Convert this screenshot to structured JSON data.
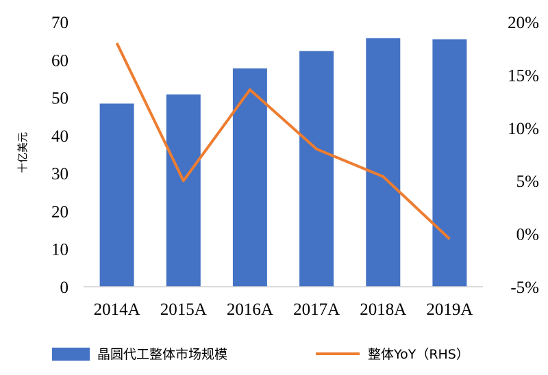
{
  "chart_data": {
    "type": "bar+line",
    "categories": [
      "2014A",
      "2015A",
      "2016A",
      "2017A",
      "2018A",
      "2019A"
    ],
    "series": [
      {
        "name": "晶圆代工整体市场规模",
        "type": "bar",
        "axis": "left",
        "color": "#4472C4",
        "values": [
          48.4,
          50.8,
          57.7,
          62.3,
          65.7,
          65.4
        ]
      },
      {
        "name": "整体YoY（RHS）",
        "type": "line",
        "axis": "right",
        "color": "#ED7D31",
        "values": [
          18.0,
          5.0,
          13.6,
          8.0,
          5.4,
          -0.5
        ]
      }
    ],
    "ylabel": "十亿美元",
    "ylim": [
      0,
      70
    ],
    "yticks": [
      "0",
      "10",
      "20",
      "30",
      "40",
      "50",
      "60",
      "70"
    ],
    "y2lim": [
      -5,
      20
    ],
    "y2ticks": [
      "-5%",
      "0%",
      "5%",
      "10%",
      "15%",
      "20%"
    ],
    "legend": [
      "晶圆代工整体市场规模",
      "整体YoY（RHS）"
    ],
    "legend_position": "bottom"
  }
}
